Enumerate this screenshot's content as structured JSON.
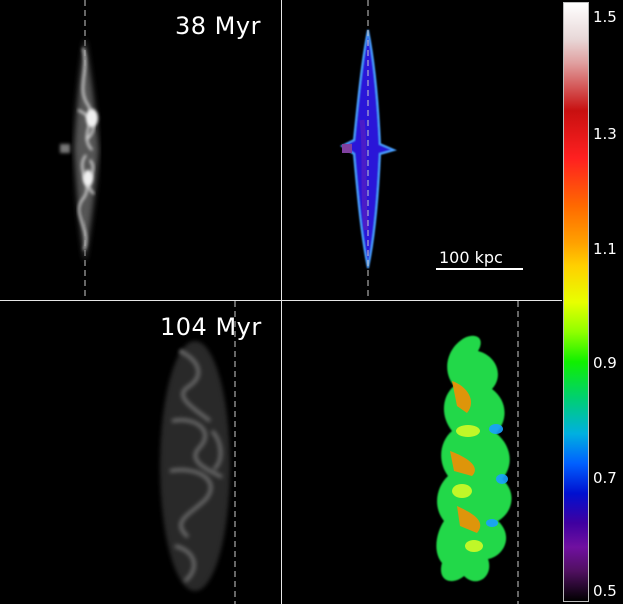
{
  "panels": {
    "top_left_time": "38 Myr",
    "bottom_left_time": "104 Myr"
  },
  "scale_bar": {
    "label": "100 kpc"
  },
  "colorbar": {
    "ticks": [
      "1.5",
      "1.3",
      "1.1",
      "0.9",
      "0.7",
      "0.5"
    ],
    "colors": {
      "top": "#ffffff",
      "red": "#c81010",
      "yellow": "#ffd000",
      "green": "#10f000",
      "blue": "#0060ff",
      "bottom": "#000000"
    }
  }
}
